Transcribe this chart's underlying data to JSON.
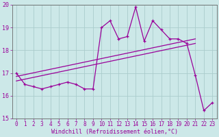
{
  "xlabel": "Windchill (Refroidissement éolien,°C)",
  "bg_color": "#cce8e8",
  "grid_color": "#aacccc",
  "line_color": "#990099",
  "spine_color": "#666666",
  "x_hours": [
    0,
    1,
    2,
    3,
    4,
    5,
    6,
    7,
    8,
    9,
    10,
    11,
    12,
    13,
    14,
    15,
    16,
    17,
    18,
    19,
    20,
    21,
    22,
    23
  ],
  "windchill": [
    17.0,
    16.5,
    16.4,
    16.3,
    16.4,
    16.5,
    16.6,
    16.5,
    16.3,
    16.3,
    19.0,
    19.3,
    18.5,
    18.6,
    19.9,
    18.4,
    19.3,
    18.9,
    18.5,
    18.5,
    18.3,
    16.9,
    15.35,
    15.7
  ],
  "ref_line1_x": [
    0,
    21
  ],
  "ref_line1_y": [
    16.85,
    18.5
  ],
  "ref_line2_x": [
    0,
    21
  ],
  "ref_line2_y": [
    16.65,
    18.3
  ],
  "ylim": [
    15,
    20
  ],
  "xlim": [
    -0.5,
    23.5
  ],
  "ytick_values": [
    15,
    16,
    17,
    18,
    19,
    20
  ],
  "marker_size": 3.5,
  "line_width": 0.9,
  "xlabel_fontsize": 6.0,
  "tick_fontsize": 5.5
}
